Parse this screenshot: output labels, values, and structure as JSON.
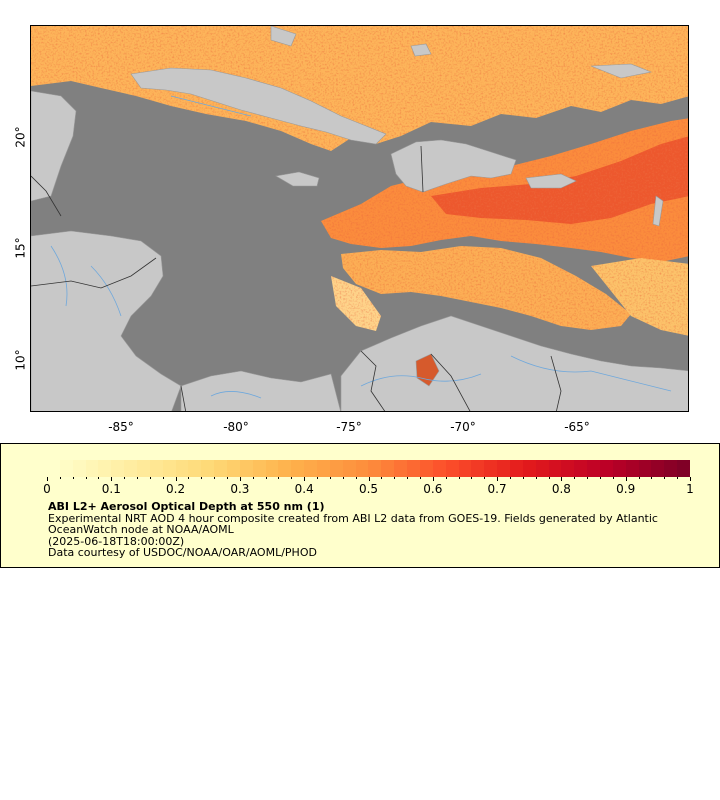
{
  "map": {
    "longitude_labels": [
      "-85°",
      "-80°",
      "-75°",
      "-70°",
      "-65°"
    ],
    "latitude_labels": [
      "20°",
      "15°",
      "10°"
    ],
    "colors": {
      "no_data_ocean": "#808080",
      "land": "#c8c8c8",
      "rivers": "#6fa8dc",
      "borders": "#333333"
    }
  },
  "legend": {
    "scale_labels": [
      "0",
      "0.1",
      "0.2",
      "0.3",
      "0.4",
      "0.5",
      "0.6",
      "0.7",
      "0.8",
      "0.9",
      "1"
    ],
    "scale_min": 0,
    "scale_max": 1,
    "colormap": [
      "#ffffcc",
      "#ffeda0",
      "#fed976",
      "#feb24c",
      "#fd8d3c",
      "#fc4e2a",
      "#e31a1c",
      "#bd0026",
      "#800026"
    ],
    "title": "ABI L2+ Aerosol Optical Depth at 550 nm (1)",
    "description": "Experimental NRT AOD 4 hour composite created from ABI L2 data from GOES-19. Fields generated by Atlantic OceanWatch node at NOAA/AOML",
    "timestamp": "(2025-06-18T18:00:00Z)",
    "credit": "Data courtesy of USDOC/NOAA/OAR/AOML/PHOD"
  }
}
